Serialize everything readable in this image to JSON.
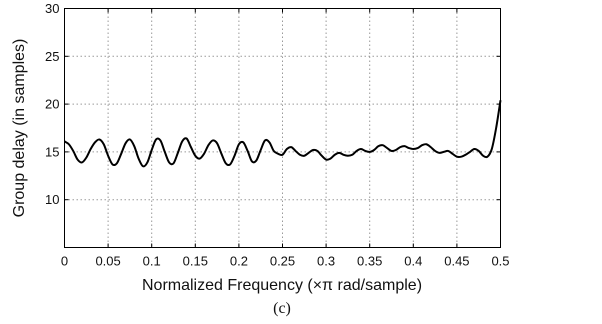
{
  "chart_data": {
    "type": "line",
    "title": "",
    "xlabel": "Normalized Frequency (×π rad/sample)",
    "ylabel": "Group delay (in samples)",
    "caption": "(c)",
    "xlim": [
      0,
      0.5
    ],
    "ylim": [
      5,
      30
    ],
    "xticks": [
      0,
      0.05,
      0.1,
      0.15,
      0.2,
      0.25,
      0.3,
      0.35,
      0.4,
      0.45,
      0.5
    ],
    "xtick_labels": [
      "0",
      "0.05",
      "0.1",
      "0.15",
      "0.2",
      "0.25",
      "0.3",
      "0.35",
      "0.4",
      "0.45",
      "0.5"
    ],
    "yticks": [
      10,
      15,
      20,
      25,
      30
    ],
    "ytick_labels": [
      "10",
      "15",
      "20",
      "25",
      "30"
    ],
    "grid": true,
    "series": [
      {
        "name": "",
        "color": "#000000",
        "x": [
          0,
          0.005,
          0.01,
          0.015,
          0.02,
          0.025,
          0.03,
          0.035,
          0.04,
          0.045,
          0.05,
          0.055,
          0.06,
          0.065,
          0.07,
          0.075,
          0.08,
          0.085,
          0.09,
          0.095,
          0.1,
          0.105,
          0.11,
          0.115,
          0.12,
          0.125,
          0.13,
          0.135,
          0.14,
          0.145,
          0.15,
          0.155,
          0.16,
          0.165,
          0.17,
          0.175,
          0.18,
          0.185,
          0.19,
          0.195,
          0.2,
          0.205,
          0.21,
          0.215,
          0.22,
          0.225,
          0.23,
          0.235,
          0.24,
          0.245,
          0.25,
          0.255,
          0.26,
          0.265,
          0.27,
          0.275,
          0.28,
          0.285,
          0.29,
          0.295,
          0.3,
          0.305,
          0.31,
          0.315,
          0.32,
          0.325,
          0.33,
          0.335,
          0.34,
          0.345,
          0.35,
          0.355,
          0.36,
          0.365,
          0.37,
          0.375,
          0.38,
          0.385,
          0.39,
          0.395,
          0.4,
          0.405,
          0.41,
          0.415,
          0.42,
          0.425,
          0.43,
          0.435,
          0.44,
          0.445,
          0.45,
          0.455,
          0.46,
          0.465,
          0.47,
          0.475,
          0.48,
          0.485,
          0.49,
          0.495,
          0.5
        ],
        "y": [
          16.1,
          15.8,
          15.1,
          14.2,
          13.9,
          14.4,
          15.3,
          16.0,
          16.3,
          15.8,
          14.6,
          13.7,
          13.8,
          14.8,
          15.9,
          16.3,
          15.6,
          14.3,
          13.5,
          13.9,
          15.2,
          16.3,
          16.2,
          15.0,
          13.9,
          13.8,
          14.9,
          16.1,
          16.4,
          15.5,
          14.6,
          14.3,
          14.8,
          15.7,
          16.2,
          15.9,
          14.8,
          13.8,
          13.7,
          14.6,
          15.8,
          16.0,
          15.1,
          14.0,
          14.1,
          15.2,
          16.2,
          16.0,
          15.1,
          14.8,
          14.7,
          15.3,
          15.5,
          15.1,
          14.7,
          14.6,
          14.9,
          15.2,
          15.1,
          14.6,
          14.2,
          14.3,
          14.7,
          14.9,
          14.7,
          14.6,
          14.7,
          15.1,
          15.3,
          15.1,
          15.0,
          15.2,
          15.6,
          15.7,
          15.4,
          15.1,
          15.2,
          15.5,
          15.6,
          15.4,
          15.3,
          15.4,
          15.7,
          15.8,
          15.5,
          15.1,
          14.9,
          15.0,
          15.1,
          14.8,
          14.5,
          14.5,
          14.7,
          15.0,
          15.3,
          15.1,
          14.6,
          14.5,
          15.3,
          17.5,
          20.4
        ]
      }
    ]
  }
}
